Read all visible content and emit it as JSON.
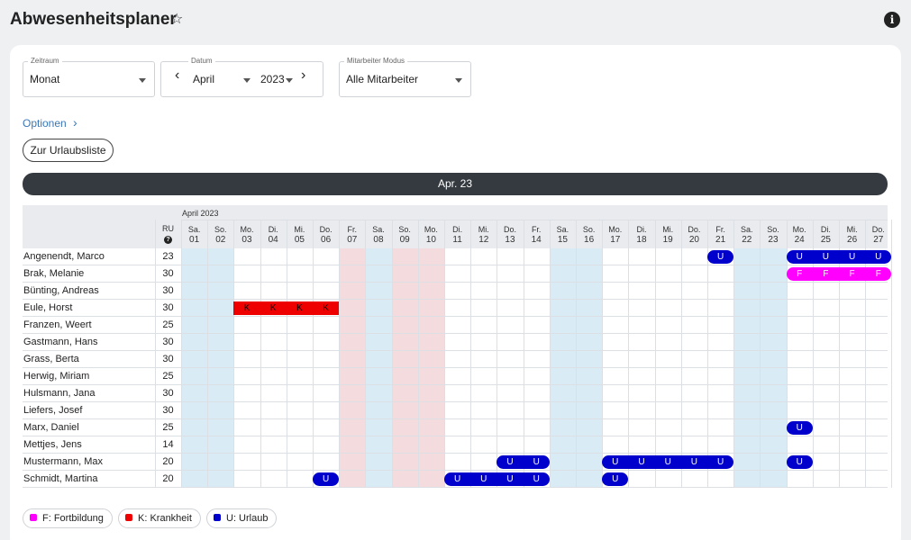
{
  "header": {
    "title": "Abwesenheitsplaner",
    "star_icon": "star-outline-icon",
    "info_icon": "info-icon",
    "info_glyph": "i"
  },
  "filters": {
    "period": {
      "label": "Zeitraum",
      "value": "Monat"
    },
    "date": {
      "label": "Datum",
      "month": "April",
      "year": "2023",
      "prev": "‹",
      "next": "›"
    },
    "mode": {
      "label": "Mitarbeiter Modus",
      "value": "Alle Mitarbeiter"
    }
  },
  "options_link": "Optionen",
  "options_chevron": "›",
  "vacation_list_button": "Zur Urlaubsliste",
  "month_banner": "Apr. 23",
  "calendar": {
    "month_label": "April 2023",
    "ru_header": "RU",
    "ru_help_glyph": "?",
    "days": [
      {
        "wd": "Sa.",
        "d": "01",
        "type": "weekend"
      },
      {
        "wd": "So.",
        "d": "02",
        "type": "weekend"
      },
      {
        "wd": "Mo.",
        "d": "03",
        "type": "work"
      },
      {
        "wd": "Di.",
        "d": "04",
        "type": "work"
      },
      {
        "wd": "Mi.",
        "d": "05",
        "type": "work"
      },
      {
        "wd": "Do.",
        "d": "06",
        "type": "work"
      },
      {
        "wd": "Fr.",
        "d": "07",
        "type": "holiday"
      },
      {
        "wd": "Sa.",
        "d": "08",
        "type": "weekend"
      },
      {
        "wd": "So.",
        "d": "09",
        "type": "holiday"
      },
      {
        "wd": "Mo.",
        "d": "10",
        "type": "holiday"
      },
      {
        "wd": "Di.",
        "d": "11",
        "type": "work"
      },
      {
        "wd": "Mi.",
        "d": "12",
        "type": "work"
      },
      {
        "wd": "Do.",
        "d": "13",
        "type": "work"
      },
      {
        "wd": "Fr.",
        "d": "14",
        "type": "work"
      },
      {
        "wd": "Sa.",
        "d": "15",
        "type": "weekend"
      },
      {
        "wd": "So.",
        "d": "16",
        "type": "weekend"
      },
      {
        "wd": "Mo.",
        "d": "17",
        "type": "work"
      },
      {
        "wd": "Di.",
        "d": "18",
        "type": "work"
      },
      {
        "wd": "Mi.",
        "d": "19",
        "type": "work"
      },
      {
        "wd": "Do.",
        "d": "20",
        "type": "work"
      },
      {
        "wd": "Fr.",
        "d": "21",
        "type": "work"
      },
      {
        "wd": "Sa.",
        "d": "22",
        "type": "weekend"
      },
      {
        "wd": "So.",
        "d": "23",
        "type": "weekend"
      },
      {
        "wd": "Mo.",
        "d": "24",
        "type": "work"
      },
      {
        "wd": "Di.",
        "d": "25",
        "type": "work"
      },
      {
        "wd": "Mi.",
        "d": "26",
        "type": "work"
      },
      {
        "wd": "Do.",
        "d": "27",
        "type": "work"
      }
    ],
    "employees": [
      {
        "name": "Angenendt, Marco",
        "ru": "23",
        "absences": [
          {
            "day": "21",
            "code": "U"
          },
          {
            "day": "24",
            "code": "U"
          },
          {
            "day": "25",
            "code": "U"
          },
          {
            "day": "26",
            "code": "U"
          },
          {
            "day": "27",
            "code": "U"
          }
        ]
      },
      {
        "name": "Brak, Melanie",
        "ru": "30",
        "absences": [
          {
            "day": "24",
            "code": "F"
          },
          {
            "day": "25",
            "code": "F"
          },
          {
            "day": "26",
            "code": "F"
          },
          {
            "day": "27",
            "code": "F"
          }
        ]
      },
      {
        "name": "Bünting, Andreas",
        "ru": "30",
        "absences": []
      },
      {
        "name": "Eule, Horst",
        "ru": "30",
        "absences": [
          {
            "day": "03",
            "code": "K"
          },
          {
            "day": "04",
            "code": "K"
          },
          {
            "day": "05",
            "code": "K"
          },
          {
            "day": "06",
            "code": "K"
          }
        ]
      },
      {
        "name": "Franzen, Weert",
        "ru": "25",
        "absences": []
      },
      {
        "name": "Gastmann, Hans",
        "ru": "30",
        "absences": []
      },
      {
        "name": "Grass, Berta",
        "ru": "30",
        "absences": []
      },
      {
        "name": "Herwig, Miriam",
        "ru": "25",
        "absences": []
      },
      {
        "name": "Hulsmann, Jana",
        "ru": "30",
        "absences": []
      },
      {
        "name": "Liefers, Josef",
        "ru": "30",
        "absences": []
      },
      {
        "name": "Marx, Daniel",
        "ru": "25",
        "absences": [
          {
            "day": "24",
            "code": "U"
          }
        ]
      },
      {
        "name": "Mettjes, Jens",
        "ru": "14",
        "absences": []
      },
      {
        "name": "Mustermann, Max",
        "ru": "20",
        "absences": [
          {
            "day": "13",
            "code": "U"
          },
          {
            "day": "14",
            "code": "U"
          },
          {
            "day": "17",
            "code": "U"
          },
          {
            "day": "18",
            "code": "U"
          },
          {
            "day": "19",
            "code": "U"
          },
          {
            "day": "20",
            "code": "U"
          },
          {
            "day": "21",
            "code": "U"
          },
          {
            "day": "24",
            "code": "U"
          }
        ]
      },
      {
        "name": "Schmidt, Martina",
        "ru": "20",
        "absences": [
          {
            "day": "06",
            "code": "U"
          },
          {
            "day": "11",
            "code": "U"
          },
          {
            "day": "12",
            "code": "U"
          },
          {
            "day": "13",
            "code": "U"
          },
          {
            "day": "14",
            "code": "U"
          },
          {
            "day": "17",
            "code": "U"
          }
        ]
      }
    ]
  },
  "absence_types": {
    "F": {
      "label": "F: Fortbildung",
      "color": "#ff00ff",
      "text": "F"
    },
    "K": {
      "label": "K: Krankheit",
      "color": "#ee0000",
      "text": "K"
    },
    "U": {
      "label": "U: Urlaub",
      "color": "#0000cc",
      "text": "U"
    }
  },
  "colors": {
    "weekend": "#d9ebf4",
    "holiday": "#f3dbde",
    "grid_line": "#dcdfe3",
    "header_bg": "#e9ebee"
  },
  "legend": [
    {
      "code": "F",
      "label": "F: Fortbildung"
    },
    {
      "code": "K",
      "label": "K: Krankheit"
    },
    {
      "code": "U",
      "label": "U: Urlaub"
    }
  ]
}
